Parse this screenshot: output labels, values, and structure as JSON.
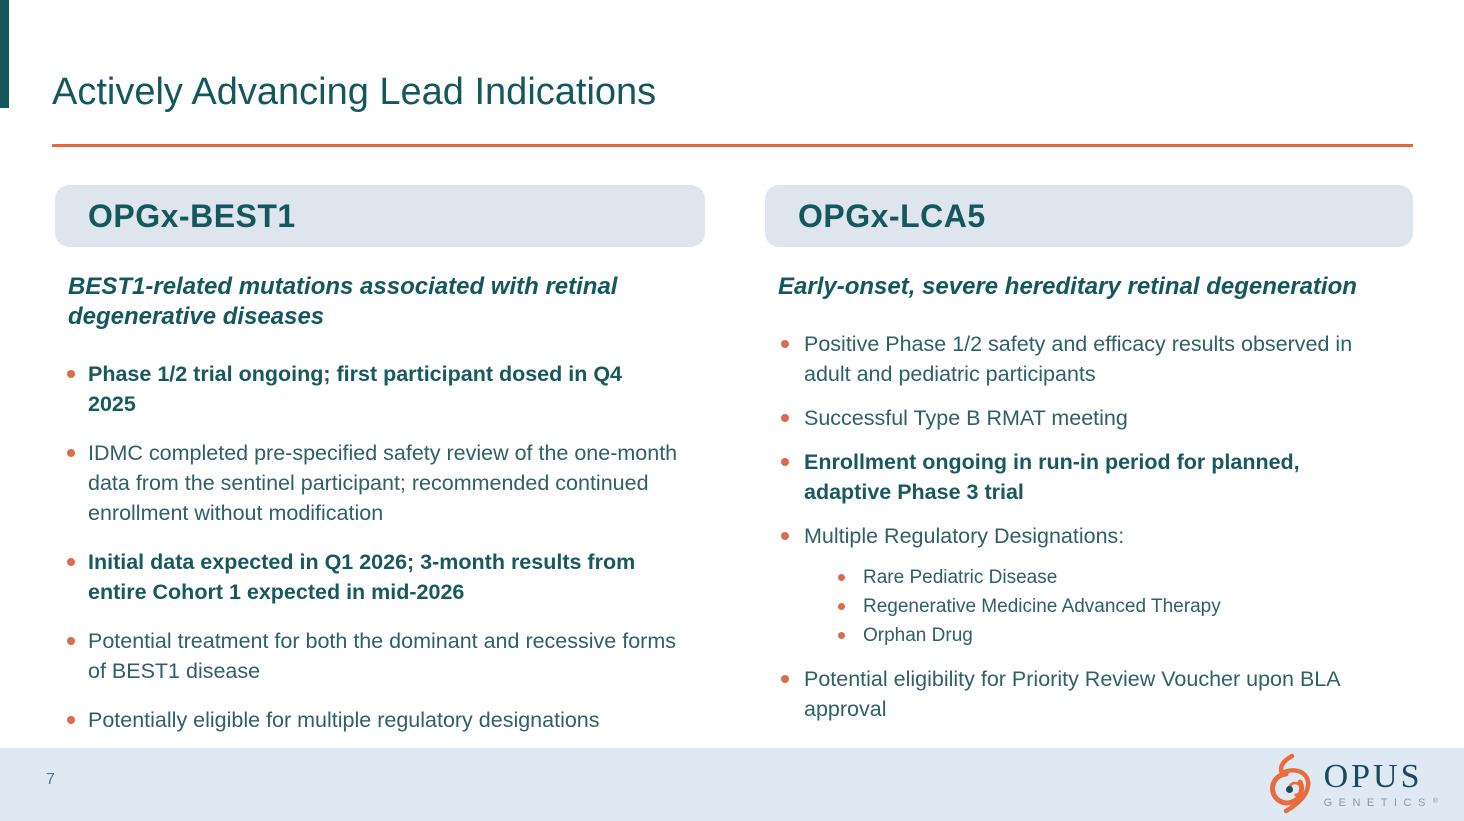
{
  "slide": {
    "title": "Actively Advancing Lead Indications"
  },
  "colors": {
    "teal_dark": "#14585C",
    "teal_body": "#2E6065",
    "teal_bold": "#17595D",
    "orange": "#E5673F",
    "bullet_orange": "#DD6A4C",
    "banner_bg": "#DEE5EE",
    "footer_bg": "#DFE9F3",
    "page_num": "#5B7288",
    "logo_orange": "#E96C3F",
    "logo_navy": "#1B4A5C",
    "logo_gray": "#8898AC"
  },
  "left_card": {
    "header": "OPGx-BEST1",
    "subtitle": "BEST1-related mutations associated with retinal degenerative diseases",
    "bullets": [
      {
        "text": "Phase 1/2 trial ongoing; first participant dosed in Q4 2025",
        "bold": true
      },
      {
        "text": "IDMC completed pre-specified safety review of the one-month data from the sentinel participant; recommended continued enrollment without modification",
        "bold": false
      },
      {
        "text": "Initial data expected in Q1 2026; 3-month results from entire Cohort 1 expected in mid-2026",
        "bold": true
      },
      {
        "text": "Potential treatment for both the dominant and recessive forms of BEST1 disease",
        "bold": false
      },
      {
        "text": "Potentially eligible for multiple regulatory designations",
        "bold": false
      }
    ]
  },
  "right_card": {
    "header": "OPGx-LCA5",
    "subtitle": "Early-onset, severe hereditary retinal degeneration",
    "bullets": [
      {
        "text": "Positive Phase 1/2 safety and efficacy results observed in adult and pediatric participants",
        "bold": false
      },
      {
        "text": "Successful Type B RMAT meeting",
        "bold": false
      },
      {
        "text": "Enrollment ongoing in run-in period for planned, adaptive Phase 3 trial",
        "bold": true
      },
      {
        "text": "Multiple Regulatory Designations:",
        "bold": false,
        "sub": [
          "Rare Pediatric Disease",
          "Regenerative Medicine Advanced Therapy",
          "Orphan Drug"
        ]
      },
      {
        "text": "Potential eligibility for Priority Review Voucher upon BLA approval",
        "bold": false
      }
    ]
  },
  "footer": {
    "page_number": "7",
    "logo_text": "OPUS",
    "logo_subtext": "GENETICS",
    "logo_mark": "®"
  }
}
